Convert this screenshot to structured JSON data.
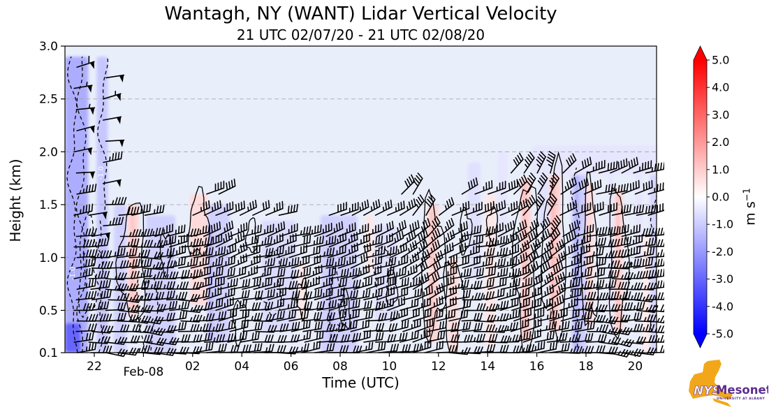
{
  "title": "Wantagh, NY (WANT) Lidar Vertical Velocity",
  "subtitle": "21 UTC 02/07/20 - 21 UTC 02/08/20",
  "branding": {
    "org": "NYS",
    "name": "Mesonet",
    "tagline": "UNIVERSITY AT ALBANY"
  },
  "colors": {
    "plot_background": "#e9eefb",
    "frame": "#000000",
    "gridline": "#9a9a9a",
    "barb": "#000000",
    "contour": "#000000",
    "contour_label": "#ffffff",
    "colorbar_positive": "#ff0000",
    "colorbar_zero": "#ffffff",
    "colorbar_negative": "#0000ff",
    "logo_orange": "#f2a71b",
    "logo_purple": "#5b2c8f"
  },
  "chart_data": {
    "type": "heatmap",
    "layers": [
      "vertical_velocity_shading",
      "contours",
      "wind_barbs"
    ],
    "title": "Wantagh, NY (WANT) Lidar Vertical Velocity",
    "subtitle": "21 UTC 02/07/20 - 21 UTC 02/08/20",
    "xlabel": "Time (UTC)",
    "ylabel": "Height (km)",
    "x_axis": {
      "start": "21 UTC 02/07/20",
      "end": "21 UTC 02/08/20",
      "span_hours": 24,
      "ticks": [
        {
          "t": 1,
          "label": "22",
          "day": false
        },
        {
          "t": 3,
          "label": "Feb-08",
          "day": true
        },
        {
          "t": 5,
          "label": "02",
          "day": false
        },
        {
          "t": 7,
          "label": "04",
          "day": false
        },
        {
          "t": 9,
          "label": "06",
          "day": false
        },
        {
          "t": 11,
          "label": "08",
          "day": false
        },
        {
          "t": 13,
          "label": "10",
          "day": false
        },
        {
          "t": 15,
          "label": "12",
          "day": false
        },
        {
          "t": 17,
          "label": "14",
          "day": false
        },
        {
          "t": 19,
          "label": "16",
          "day": false
        },
        {
          "t": 21,
          "label": "18",
          "day": false
        },
        {
          "t": 23,
          "label": "20",
          "day": false
        }
      ]
    },
    "y_axis": {
      "min_km": 0.1,
      "max_km": 3.0,
      "ticks": [
        {
          "h": 3.0,
          "label": "3.0"
        },
        {
          "h": 2.5,
          "label": "2.5"
        },
        {
          "h": 2.0,
          "label": "2.0"
        },
        {
          "h": 1.5,
          "label": "1.5"
        },
        {
          "h": 1.0,
          "label": "1.0"
        },
        {
          "h": 0.5,
          "label": "0.5"
        },
        {
          "h": 0.1,
          "label": "0.1"
        }
      ],
      "gridlines_km": [
        2.5,
        2.0,
        1.5,
        1.0,
        0.5
      ]
    },
    "colorbar": {
      "variable": "vertical velocity",
      "min": -5.0,
      "max": 5.0,
      "unit_base": "m s",
      "unit_exp": "−1",
      "ticks": [
        {
          "v": 5,
          "label": "5.0"
        },
        {
          "v": 4,
          "label": "4.0"
        },
        {
          "v": 3,
          "label": "3.0"
        },
        {
          "v": 2,
          "label": "2.0"
        },
        {
          "v": 1,
          "label": "1.0"
        },
        {
          "v": 0,
          "label": "0.0"
        },
        {
          "v": -1,
          "label": "-1.0"
        },
        {
          "v": -2,
          "label": "-2.0"
        },
        {
          "v": -3,
          "label": "-3.0"
        },
        {
          "v": -4,
          "label": "-4.0"
        },
        {
          "v": -5,
          "label": "-5.0"
        }
      ]
    },
    "background_value_ms": -0.3,
    "shading_bands": {
      "fields": [
        "t_start_h_after_21utc",
        "t_end_h",
        "h_bottom_km",
        "h_top_km",
        "w_ms"
      ],
      "rows": [
        [
          -0.2,
          0.75,
          0.1,
          2.9,
          -1.6
        ],
        [
          -0.2,
          0.45,
          0.1,
          0.38,
          -3.0
        ],
        [
          1.1,
          1.55,
          0.1,
          2.9,
          -1.1
        ],
        [
          1.8,
          2.3,
          0.1,
          1.5,
          -0.9
        ],
        [
          2.35,
          2.8,
          0.45,
          1.5,
          0.8
        ],
        [
          2.5,
          2.6,
          0.5,
          1.45,
          1.3
        ],
        [
          3.1,
          4.3,
          0.1,
          1.4,
          -0.9
        ],
        [
          4.9,
          5.6,
          0.55,
          1.6,
          0.7
        ],
        [
          5.6,
          6.5,
          0.2,
          1.5,
          -0.9
        ],
        [
          5.65,
          5.8,
          0.2,
          1.3,
          -1.4
        ],
        [
          7.8,
          9.2,
          0.3,
          1.35,
          -0.7
        ],
        [
          9.3,
          9.6,
          0.4,
          0.95,
          0.5
        ],
        [
          10.2,
          11.7,
          0.1,
          1.4,
          -0.9
        ],
        [
          10.55,
          10.7,
          0.2,
          1.2,
          -1.4
        ],
        [
          12.05,
          12.35,
          0.85,
          1.4,
          0.5
        ],
        [
          12.4,
          13.3,
          0.4,
          1.3,
          -0.6
        ],
        [
          14.55,
          15.0,
          0.2,
          1.5,
          0.8
        ],
        [
          14.68,
          14.78,
          0.3,
          1.45,
          1.3
        ],
        [
          15.4,
          15.8,
          0.1,
          1.0,
          0.7
        ],
        [
          16.2,
          16.7,
          0.8,
          1.9,
          -0.6
        ],
        [
          16.9,
          17.3,
          0.15,
          1.6,
          0.5
        ],
        [
          17.4,
          17.8,
          1.1,
          2.0,
          -0.5
        ],
        [
          18.35,
          18.75,
          0.2,
          1.75,
          0.9
        ],
        [
          18.45,
          18.55,
          0.25,
          1.7,
          1.4
        ],
        [
          19.1,
          19.45,
          1.3,
          2.0,
          -0.6
        ],
        [
          19.5,
          19.95,
          0.3,
          1.8,
          0.9
        ],
        [
          19.6,
          19.72,
          0.35,
          1.75,
          1.5
        ],
        [
          20.4,
          21.0,
          0.1,
          2.0,
          -1.0
        ],
        [
          20.55,
          20.7,
          0.1,
          1.9,
          -1.6
        ],
        [
          21.0,
          21.3,
          0.35,
          1.7,
          0.7
        ],
        [
          21.9,
          22.1,
          0.3,
          1.9,
          -0.5
        ],
        [
          22.15,
          22.5,
          0.3,
          1.65,
          0.8
        ],
        [
          22.25,
          22.35,
          0.35,
          1.6,
          1.3
        ],
        [
          23.0,
          23.3,
          0.9,
          1.9,
          -0.5
        ],
        [
          23.3,
          23.6,
          0.1,
          1.2,
          0.4
        ],
        [
          23.6,
          24.1,
          0.1,
          1.9,
          -0.8
        ],
        [
          18.8,
          24.1,
          1.78,
          2.06,
          -0.5
        ]
      ]
    },
    "contours": {
      "dashed_value_ms": -1.0,
      "solid_value_ms": 1.0,
      "labels": {
        "negative": "-1.0",
        "positive": "1.0"
      },
      "dashed_lines": [
        [
          0.12,
          0.1,
          2.9
        ],
        [
          0.5,
          0.1,
          2.9
        ],
        [
          1.35,
          1.45,
          2.9
        ],
        [
          1.18,
          0.1,
          1.35
        ],
        [
          20.6,
          0.15,
          1.85
        ],
        [
          23.85,
          0.3,
          1.9
        ]
      ],
      "dashed_blobs": [
        [
          0.8,
          0.9,
          0.22,
          0.45
        ],
        [
          3.15,
          0.5,
          0.2,
          0.35
        ],
        [
          8.2,
          0.75,
          0.2,
          0.3
        ],
        [
          10.85,
          0.55,
          0.16,
          0.28
        ],
        [
          12.7,
          0.85,
          0.16,
          0.28
        ]
      ],
      "solid_blobs": [
        [
          2.55,
          0.95,
          0.26,
          0.55
        ],
        [
          5.25,
          1.3,
          0.2,
          0.3
        ],
        [
          14.78,
          0.9,
          0.25,
          0.6
        ],
        [
          15.6,
          0.55,
          0.18,
          0.45
        ],
        [
          18.55,
          0.95,
          0.22,
          0.78
        ],
        [
          19.72,
          1.05,
          0.24,
          0.75
        ],
        [
          21.15,
          1.0,
          0.16,
          0.65
        ],
        [
          22.3,
          0.95,
          0.18,
          0.68
        ],
        [
          6.9,
          0.4,
          0.12,
          0.2
        ],
        [
          9.45,
          0.62,
          0.1,
          0.17
        ],
        [
          11.2,
          0.5,
          0.1,
          0.17
        ],
        [
          13.1,
          0.7,
          0.1,
          0.17
        ],
        [
          16.1,
          1.25,
          0.11,
          0.2
        ],
        [
          3.9,
          1.05,
          0.11,
          0.18
        ],
        [
          17.2,
          1.3,
          0.1,
          0.17
        ],
        [
          7.4,
          1.2,
          0.1,
          0.16
        ]
      ],
      "negative_label_positions": [
        [
          0.2,
          0.85
        ],
        [
          1.35,
          1.8
        ]
      ],
      "positive_label_positions": [
        [
          14.78,
          0.85
        ],
        [
          18.55,
          0.8
        ],
        [
          19.72,
          0.85
        ],
        [
          22.3,
          0.85
        ]
      ]
    },
    "wind_barbs": {
      "fields": [
        "t_h_after_21utc",
        "h_min_km",
        "h_max_km",
        "spd_min_kt",
        "spd_max_kt",
        "tilt_bottom_deg",
        "tilt_top_deg"
      ],
      "columns": [
        [
          0.25,
          0.1,
          2.85,
          32,
          58,
          4,
          12
        ],
        [
          0.85,
          0.1,
          1.55,
          34,
          52,
          0,
          8
        ],
        [
          1.4,
          1.3,
          2.75,
          44,
          54,
          6,
          12
        ],
        [
          1.5,
          0.1,
          1.0,
          30,
          34,
          -6,
          4
        ],
        [
          2.0,
          0.1,
          1.5,
          30,
          38,
          -8,
          8
        ],
        [
          2.5,
          0.1,
          1.55,
          32,
          38,
          -5,
          10
        ],
        [
          3.0,
          0.1,
          1.5,
          30,
          36,
          -8,
          6
        ],
        [
          3.5,
          0.1,
          1.3,
          29,
          35,
          -4,
          12
        ],
        [
          4.0,
          0.1,
          1.3,
          30,
          36,
          0,
          15
        ],
        [
          4.5,
          0.1,
          1.35,
          30,
          36,
          -6,
          10
        ],
        [
          5.0,
          0.1,
          1.55,
          30,
          38,
          4,
          20
        ],
        [
          5.5,
          0.1,
          1.6,
          32,
          40,
          6,
          25
        ],
        [
          6.0,
          0.1,
          1.6,
          30,
          38,
          8,
          28
        ],
        [
          6.5,
          0.1,
          1.55,
          29,
          37,
          5,
          30
        ],
        [
          7.0,
          0.1,
          1.5,
          30,
          36,
          2,
          25
        ],
        [
          7.5,
          0.1,
          1.45,
          28,
          35,
          0,
          20
        ],
        [
          8.0,
          0.1,
          1.4,
          29,
          36,
          4,
          22
        ],
        [
          8.5,
          0.1,
          1.4,
          30,
          36,
          2,
          18
        ],
        [
          9.0,
          0.1,
          1.3,
          28,
          34,
          6,
          15
        ],
        [
          9.5,
          0.1,
          1.3,
          29,
          35,
          8,
          20
        ],
        [
          10.0,
          0.1,
          1.3,
          30,
          36,
          5,
          18
        ],
        [
          10.5,
          0.1,
          1.4,
          29,
          36,
          6,
          22
        ],
        [
          11.0,
          0.1,
          1.45,
          30,
          37,
          4,
          25
        ],
        [
          11.5,
          0.1,
          1.5,
          29,
          36,
          8,
          28
        ],
        [
          12.0,
          0.1,
          1.5,
          30,
          37,
          5,
          24
        ],
        [
          12.5,
          0.1,
          1.5,
          29,
          35,
          6,
          26
        ],
        [
          13.0,
          0.1,
          1.55,
          30,
          37,
          10,
          30
        ],
        [
          13.5,
          0.1,
          1.6,
          30,
          38,
          8,
          40
        ],
        [
          14.0,
          0.1,
          1.6,
          31,
          38,
          12,
          55
        ],
        [
          14.5,
          0.1,
          1.55,
          30,
          38,
          10,
          60
        ],
        [
          15.0,
          0.1,
          1.5,
          30,
          37,
          5,
          40
        ],
        [
          15.5,
          0.1,
          1.5,
          29,
          36,
          0,
          30
        ],
        [
          16.0,
          0.1,
          1.6,
          30,
          37,
          -4,
          25
        ],
        [
          16.5,
          0.1,
          1.65,
          30,
          37,
          -2,
          20
        ],
        [
          17.0,
          0.1,
          1.65,
          31,
          38,
          0,
          25
        ],
        [
          17.5,
          0.1,
          1.7,
          32,
          39,
          5,
          30
        ],
        [
          18.0,
          0.1,
          1.8,
          32,
          40,
          8,
          45
        ],
        [
          18.5,
          0.1,
          1.8,
          33,
          42,
          10,
          60
        ],
        [
          19.0,
          0.1,
          1.85,
          32,
          44,
          6,
          70
        ],
        [
          19.5,
          0.1,
          1.85,
          32,
          46,
          8,
          75
        ],
        [
          20.0,
          0.1,
          1.85,
          32,
          44,
          4,
          40
        ],
        [
          20.5,
          0.1,
          1.9,
          31,
          42,
          0,
          30
        ],
        [
          21.0,
          0.1,
          1.9,
          32,
          42,
          -5,
          25
        ],
        [
          21.5,
          0.1,
          1.95,
          32,
          43,
          -8,
          20
        ],
        [
          22.0,
          0.1,
          1.95,
          32,
          44,
          -10,
          22
        ],
        [
          22.5,
          0.1,
          1.9,
          31,
          42,
          -6,
          25
        ],
        [
          23.0,
          0.1,
          1.9,
          32,
          43,
          -8,
          20
        ],
        [
          23.5,
          0.1,
          1.85,
          32,
          44,
          -5,
          18
        ]
      ]
    }
  }
}
